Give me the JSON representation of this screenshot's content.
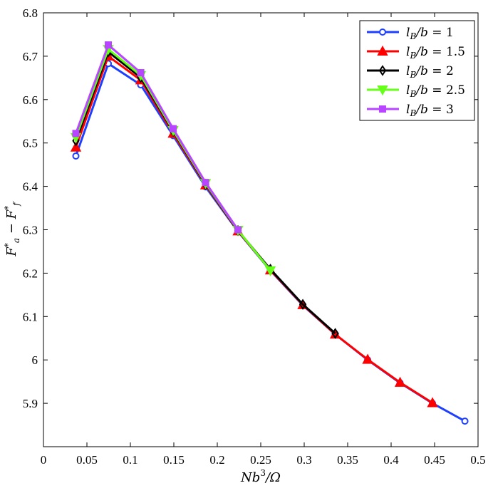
{
  "chart_data": {
    "type": "line",
    "xlabel": "Nb³/Ω",
    "ylabel": "F*a − F*f",
    "xlim": [
      0,
      0.5
    ],
    "ylim": [
      5.8,
      6.8
    ],
    "x_ticks": [
      0,
      0.05,
      0.1,
      0.15,
      0.2,
      0.25,
      0.3,
      0.35,
      0.4,
      0.45,
      0.5
    ],
    "x_tick_labels": [
      "0",
      "0.05",
      "0.1",
      "0.15",
      "0.2",
      "0.25",
      "0.3",
      "0.35",
      "0.4",
      "0.45",
      "0.5"
    ],
    "y_ticks": [
      5.9,
      6.0,
      6.1,
      6.2,
      6.3,
      6.4,
      6.5,
      6.6,
      6.7,
      6.8
    ],
    "y_tick_labels": [
      "5.9",
      "6",
      "6.1",
      "6.2",
      "6.3",
      "6.4",
      "6.5",
      "6.6",
      "6.7",
      "6.8"
    ],
    "grid": false,
    "legend_position": "top-right",
    "series": [
      {
        "name": "l_B/b = 1",
        "color": "#1f3fff",
        "marker": "circle",
        "x": [
          0.0373,
          0.0746,
          0.1119,
          0.1492,
          0.1865,
          0.2238,
          0.2611,
          0.2984,
          0.3357,
          0.373,
          0.4103,
          0.4476,
          0.4849
        ],
        "values": [
          6.47,
          6.683,
          6.634,
          6.517,
          6.399,
          6.296,
          6.206,
          6.126,
          6.059,
          6.0,
          5.947,
          5.9,
          5.859
        ]
      },
      {
        "name": "l_B/b = 1.5",
        "color": "#ff0000",
        "marker": "triangle-up",
        "x": [
          0.0373,
          0.0746,
          0.1119,
          0.1492,
          0.1865,
          0.2238,
          0.2611,
          0.2984,
          0.3357,
          0.373,
          0.4103,
          0.4476
        ],
        "values": [
          6.49,
          6.7,
          6.645,
          6.522,
          6.403,
          6.297,
          6.207,
          6.127,
          6.059,
          6.001,
          5.948,
          5.901
        ]
      },
      {
        "name": "l_B/b = 2",
        "color": "#000000",
        "marker": "diamond",
        "x": [
          0.0373,
          0.0746,
          0.1119,
          0.1492,
          0.1865,
          0.2238,
          0.2611,
          0.2984,
          0.3357
        ],
        "values": [
          6.505,
          6.71,
          6.651,
          6.527,
          6.405,
          6.298,
          6.209,
          6.128,
          6.061
        ]
      },
      {
        "name": "l_B/b = 2.5",
        "color": "#66ff1a",
        "marker": "triangle-down",
        "x": [
          0.0373,
          0.0746,
          0.1119,
          0.1492,
          0.1865,
          0.2238,
          0.2611
        ],
        "values": [
          6.513,
          6.716,
          6.656,
          6.529,
          6.407,
          6.299,
          6.206
        ]
      },
      {
        "name": "l_B/b = 3",
        "color": "#b845ff",
        "marker": "square",
        "x": [
          0.0373,
          0.0746,
          0.1119,
          0.1492,
          0.1865,
          0.2238
        ],
        "values": [
          6.522,
          6.726,
          6.662,
          6.533,
          6.409,
          6.3
        ]
      }
    ]
  }
}
